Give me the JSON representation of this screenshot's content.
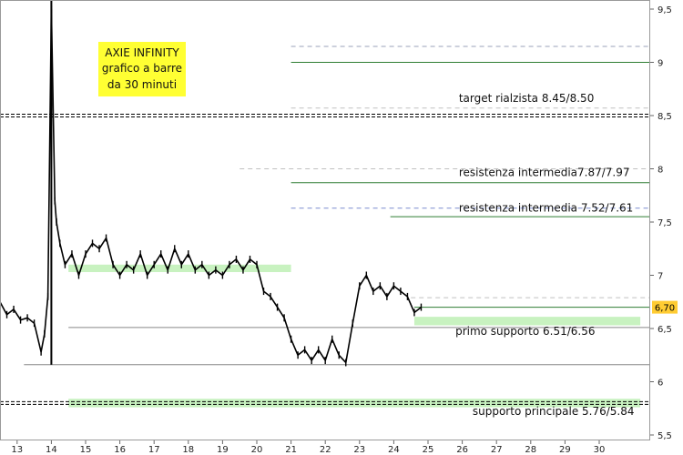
{
  "chart_data": {
    "type": "line",
    "title_box": {
      "lines": [
        "AXIE INFINITY",
        "grafico a barre",
        "da 30 minuti"
      ],
      "background": "#ffff33"
    },
    "y_axis": {
      "min": 5.5,
      "max": 9.6,
      "ticks": [
        9.5,
        9,
        8.5,
        8,
        7.5,
        7,
        6.5,
        6,
        5.5
      ],
      "tick_labels": [
        "9,5",
        "9",
        "8,5",
        "8",
        "7,5",
        "7",
        "6,5",
        "6",
        "5,5"
      ],
      "position": "right"
    },
    "x_axis": {
      "min": 12.5,
      "max": 31.2,
      "ticks": [
        13,
        14,
        15,
        16,
        17,
        18,
        19,
        20,
        21,
        22,
        23,
        24,
        25,
        26,
        27,
        28,
        29,
        30
      ],
      "tick_labels": [
        "13",
        "14",
        "15",
        "16",
        "17",
        "18",
        "19",
        "20",
        "21",
        "22",
        "23",
        "24",
        "25",
        "26",
        "27",
        "28",
        "29",
        "30"
      ]
    },
    "current_price": {
      "value": 6.7,
      "label": "6,70",
      "color": "#ffcc33"
    },
    "series": [
      {
        "color": "#000000",
        "x": [
          12.5,
          12.7,
          12.9,
          13.1,
          13.3,
          13.5,
          13.7,
          13.8,
          13.9,
          14.0,
          14.1,
          14.15,
          14.25,
          14.4,
          14.6,
          14.8,
          15.0,
          15.2,
          15.4,
          15.6,
          15.8,
          16.0,
          16.2,
          16.4,
          16.6,
          16.8,
          17.0,
          17.2,
          17.4,
          17.6,
          17.8,
          18.0,
          18.2,
          18.4,
          18.6,
          18.8,
          19.0,
          19.2,
          19.4,
          19.6,
          19.8,
          20.0,
          20.2,
          20.4,
          20.6,
          20.8,
          21.0,
          21.2,
          21.4,
          21.6,
          21.8,
          22.0,
          22.2,
          22.4,
          22.6,
          22.8,
          23.0,
          23.2,
          23.4,
          23.6,
          23.8,
          24.0,
          24.2,
          24.4,
          24.6,
          24.8
        ],
        "y": [
          6.75,
          6.63,
          6.68,
          6.58,
          6.6,
          6.55,
          6.28,
          6.45,
          6.8,
          9.5,
          7.7,
          7.5,
          7.3,
          7.1,
          7.2,
          7.0,
          7.2,
          7.3,
          7.25,
          7.35,
          7.1,
          7.0,
          7.1,
          7.05,
          7.2,
          7.0,
          7.1,
          7.2,
          7.05,
          7.25,
          7.1,
          7.2,
          7.05,
          7.1,
          7.0,
          7.05,
          7.0,
          7.1,
          7.15,
          7.05,
          7.15,
          7.1,
          6.85,
          6.8,
          6.7,
          6.6,
          6.4,
          6.25,
          6.3,
          6.2,
          6.3,
          6.2,
          6.4,
          6.25,
          6.18,
          6.55,
          6.9,
          7.0,
          6.85,
          6.9,
          6.8,
          6.9,
          6.85,
          6.8,
          6.65,
          6.7
        ]
      }
    ],
    "levels": [
      {
        "value": 9.15,
        "style": "dashed",
        "color": "#9aa0b8",
        "from_x": 21.0
      },
      {
        "value": 9.0,
        "style": "solid",
        "color": "#2e7d32",
        "from_x": 21.0
      },
      {
        "value": 8.5,
        "style": "double-dashed",
        "color": "#000000",
        "from_x": 12.5
      },
      {
        "value": 8.57,
        "style": "dashed",
        "color": "#c0c0c0",
        "from_x": 21.0
      },
      {
        "value": 8.0,
        "style": "dashed",
        "color": "#c0c0c0",
        "from_x": 19.5
      },
      {
        "value": 7.87,
        "style": "solid",
        "color": "#2e7d32",
        "from_x": 21.0
      },
      {
        "value": 7.63,
        "style": "dashed",
        "color": "#7a8ccf",
        "from_x": 21.0
      },
      {
        "value": 7.55,
        "style": "solid",
        "color": "#2e7d32",
        "from_x": 23.9
      },
      {
        "value": 6.79,
        "style": "dashed",
        "color": "#c0c0c0",
        "from_x": 24.5
      },
      {
        "value": 6.7,
        "style": "solid",
        "color": "#2e7d32",
        "from_x": 24.6
      },
      {
        "value": 6.51,
        "style": "solid",
        "color": "#888888",
        "from_x": 14.5
      },
      {
        "value": 6.16,
        "style": "solid",
        "color": "#888888",
        "from_x": 13.2
      },
      {
        "value": 5.8,
        "style": "double-dashed",
        "color": "#000000",
        "from_x": 12.5
      }
    ],
    "zones": [
      {
        "from": 7.03,
        "to": 7.1,
        "x_from": 14.5,
        "x_to": 21.0,
        "color": "#c8f2c0"
      },
      {
        "from": 6.53,
        "to": 6.61,
        "x_from": 24.6,
        "x_to": 31.2,
        "color": "#c8f2c0"
      },
      {
        "from": 5.76,
        "to": 5.84,
        "x_from": 14.5,
        "x_to": 31.2,
        "color": "#c8f2c0"
      }
    ],
    "annotations": [
      {
        "text": "target rialzista 8.45/8.50",
        "x": 25.9,
        "y": 8.63
      },
      {
        "text": "resistenza intermedia7.87/7.97",
        "x": 25.9,
        "y": 7.93
      },
      {
        "text": "resistenza intermedia 7.52/7.61",
        "x": 25.9,
        "y": 7.6
      },
      {
        "text": "primo supporto 6.51/6.56",
        "x": 25.8,
        "y": 6.44
      },
      {
        "text": "supporto principale 5.76/5.84",
        "x": 26.3,
        "y": 5.69
      }
    ]
  }
}
